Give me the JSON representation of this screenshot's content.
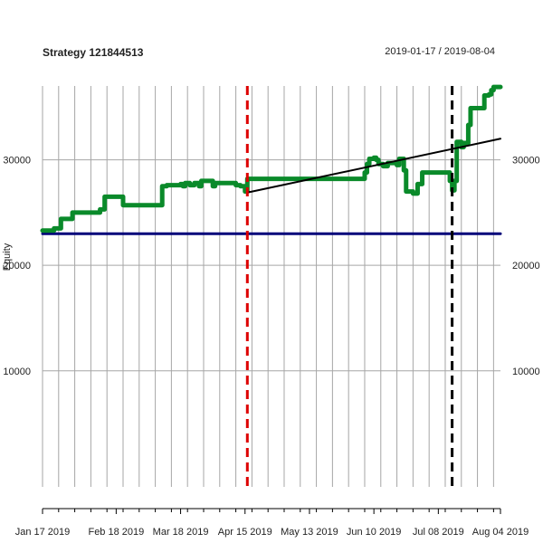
{
  "chart_data": {
    "type": "line",
    "title": "Strategy 121844513",
    "date_range": "2019-01-17 / 2019-08-04",
    "ylabel": "Equity",
    "xlabel": "",
    "xlim": [
      0,
      199
    ],
    "ylim": [
      -1000,
      37000
    ],
    "y_ticks": [
      {
        "value": 10000,
        "label": "10000"
      },
      {
        "value": 20000,
        "label": "20000"
      },
      {
        "value": 30000,
        "label": "30000"
      }
    ],
    "x_ticks": [
      {
        "value": 0,
        "label": "Jan 17 2019"
      },
      {
        "value": 32,
        "label": "Feb 18 2019"
      },
      {
        "value": 60,
        "label": "Mar 18 2019"
      },
      {
        "value": 88,
        "label": "Apr 15 2019"
      },
      {
        "value": 116,
        "label": "May 13 2019"
      },
      {
        "value": 144,
        "label": "Jun 10 2019"
      },
      {
        "value": 172,
        "label": "Jul 08 2019"
      },
      {
        "value": 199,
        "label": "Aug 04 2019"
      }
    ],
    "grid_x": [
      0,
      7,
      14,
      21,
      28,
      35,
      42,
      49,
      56,
      63,
      70,
      77,
      84,
      91,
      98,
      105,
      112,
      119,
      126,
      133,
      140,
      147,
      154,
      161,
      168,
      175,
      182,
      189,
      196
    ],
    "series": [
      {
        "name": "equity",
        "color": "#0a8a2a",
        "points": [
          [
            0,
            23300
          ],
          [
            4,
            23300
          ],
          [
            5,
            23500
          ],
          [
            7,
            23500
          ],
          [
            8,
            24400
          ],
          [
            12,
            24400
          ],
          [
            13,
            25000
          ],
          [
            24,
            25000
          ],
          [
            25,
            25300
          ],
          [
            27,
            26500
          ],
          [
            34,
            26500
          ],
          [
            35,
            25700
          ],
          [
            51,
            25700
          ],
          [
            52,
            27500
          ],
          [
            54,
            27600
          ],
          [
            60,
            27700
          ],
          [
            61,
            27500
          ],
          [
            62,
            27800
          ],
          [
            64,
            27600
          ],
          [
            66,
            27800
          ],
          [
            68,
            27500
          ],
          [
            69,
            28000
          ],
          [
            73,
            28000
          ],
          [
            74,
            27500
          ],
          [
            75,
            27800
          ],
          [
            83,
            27800
          ],
          [
            84,
            27600
          ],
          [
            86,
            27500
          ],
          [
            88,
            27000
          ],
          [
            89,
            28200
          ],
          [
            139,
            28200
          ],
          [
            140,
            28800
          ],
          [
            141,
            29600
          ],
          [
            142,
            30100
          ],
          [
            144,
            30200
          ],
          [
            145,
            30000
          ],
          [
            146,
            29600
          ],
          [
            148,
            29400
          ],
          [
            150,
            29700
          ],
          [
            154,
            29500
          ],
          [
            155,
            30100
          ],
          [
            157,
            29000
          ],
          [
            158,
            27000
          ],
          [
            161,
            26800
          ],
          [
            163,
            27700
          ],
          [
            165,
            28800
          ],
          [
            176,
            28800
          ],
          [
            177,
            28000
          ],
          [
            178,
            27100
          ],
          [
            179,
            28000
          ],
          [
            180,
            31700
          ],
          [
            182,
            31200
          ],
          [
            183,
            31600
          ],
          [
            185,
            33300
          ],
          [
            186,
            34900
          ],
          [
            191,
            34900
          ],
          [
            192,
            36100
          ],
          [
            194,
            36200
          ],
          [
            195,
            36600
          ],
          [
            196,
            36900
          ],
          [
            199,
            36900
          ]
        ]
      },
      {
        "name": "trend",
        "color": "#000000",
        "points": [
          [
            89,
            26900
          ],
          [
            199,
            32000
          ]
        ]
      },
      {
        "name": "baseline",
        "color": "#00007a",
        "points": [
          [
            0,
            23000
          ],
          [
            199,
            23000
          ]
        ]
      }
    ],
    "vlines": [
      {
        "name": "in-sample-end",
        "x": 89,
        "color": "#dd0000"
      },
      {
        "name": "live-start",
        "x": 178,
        "color": "#000000"
      }
    ]
  }
}
